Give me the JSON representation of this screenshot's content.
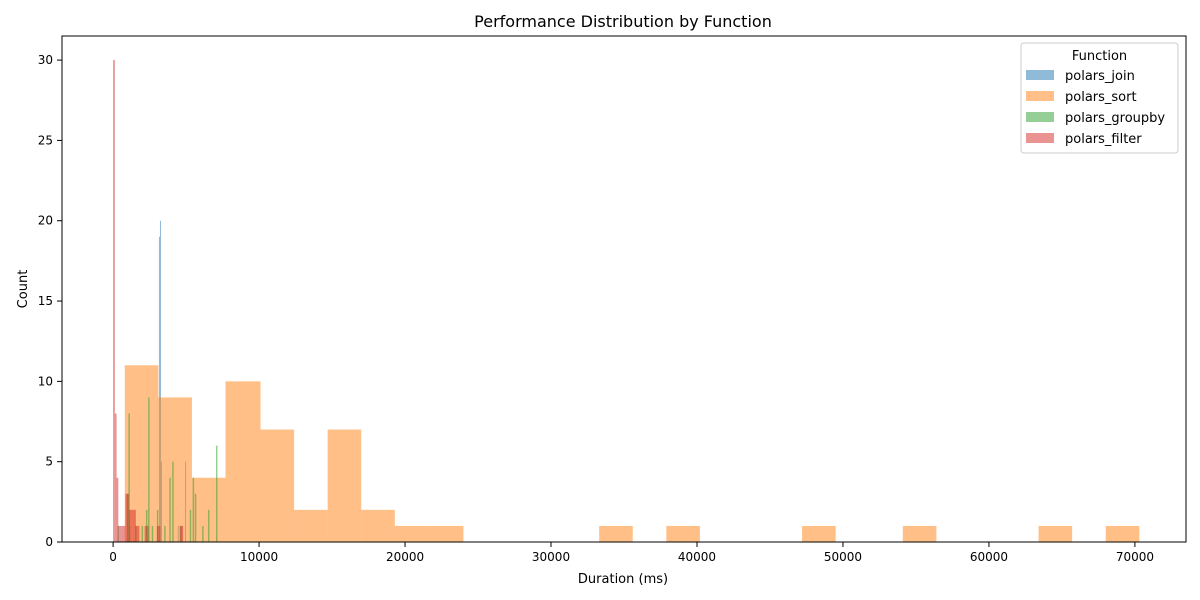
{
  "chart_data": {
    "type": "histogram",
    "title": "Performance Distribution by Function",
    "xlabel": "Duration (ms)",
    "ylabel": "Count",
    "xlim": [
      -3500,
      73500
    ],
    "ylim": [
      0,
      31.5
    ],
    "xticks": [
      0,
      10000,
      20000,
      30000,
      40000,
      50000,
      60000,
      70000
    ],
    "yticks": [
      0,
      5,
      10,
      15,
      20,
      25,
      30
    ],
    "grid": false,
    "legend": {
      "title": "Function",
      "position": "top-right"
    },
    "series": [
      {
        "name": "polars_join",
        "color": "#1f77b4",
        "opacity": 0.5,
        "bins": [
          {
            "x0": 1100,
            "x1": 1170,
            "count": 1
          },
          {
            "x0": 2400,
            "x1": 2470,
            "count": 1
          },
          {
            "x0": 3140,
            "x1": 3210,
            "count": 19
          },
          {
            "x0": 3210,
            "x1": 3280,
            "count": 20
          },
          {
            "x0": 3280,
            "x1": 3350,
            "count": 5
          },
          {
            "x0": 4430,
            "x1": 4500,
            "count": 1
          },
          {
            "x0": 4930,
            "x1": 5000,
            "count": 5
          }
        ]
      },
      {
        "name": "polars_sort",
        "color": "#ff7f0e",
        "opacity": 0.5,
        "bins": [
          {
            "x0": 800,
            "x1": 3100,
            "count": 11
          },
          {
            "x0": 3100,
            "x1": 5400,
            "count": 9
          },
          {
            "x0": 5400,
            "x1": 7700,
            "count": 4
          },
          {
            "x0": 7700,
            "x1": 10100,
            "count": 10
          },
          {
            "x0": 10100,
            "x1": 12400,
            "count": 7
          },
          {
            "x0": 12400,
            "x1": 14700,
            "count": 2
          },
          {
            "x0": 14700,
            "x1": 17000,
            "count": 7
          },
          {
            "x0": 17000,
            "x1": 19300,
            "count": 2
          },
          {
            "x0": 19300,
            "x1": 21700,
            "count": 1
          },
          {
            "x0": 21700,
            "x1": 24000,
            "count": 1
          },
          {
            "x0": 33300,
            "x1": 35600,
            "count": 1
          },
          {
            "x0": 37900,
            "x1": 40200,
            "count": 1
          },
          {
            "x0": 47200,
            "x1": 49500,
            "count": 1
          },
          {
            "x0": 54100,
            "x1": 56400,
            "count": 1
          },
          {
            "x0": 63400,
            "x1": 65700,
            "count": 1
          },
          {
            "x0": 68000,
            "x1": 70300,
            "count": 1
          }
        ]
      },
      {
        "name": "polars_groupby",
        "color": "#2ca02c",
        "opacity": 0.5,
        "bins": [
          {
            "x0": 300,
            "x1": 400,
            "count": 1
          },
          {
            "x0": 950,
            "x1": 1050,
            "count": 3
          },
          {
            "x0": 1050,
            "x1": 1150,
            "count": 8
          },
          {
            "x0": 1500,
            "x1": 1600,
            "count": 1
          },
          {
            "x0": 1950,
            "x1": 2050,
            "count": 1
          },
          {
            "x0": 2250,
            "x1": 2350,
            "count": 2
          },
          {
            "x0": 2400,
            "x1": 2500,
            "count": 9
          },
          {
            "x0": 2650,
            "x1": 2750,
            "count": 1
          },
          {
            "x0": 3000,
            "x1": 3100,
            "count": 2
          },
          {
            "x0": 3500,
            "x1": 3600,
            "count": 1
          },
          {
            "x0": 3850,
            "x1": 3950,
            "count": 4
          },
          {
            "x0": 4050,
            "x1": 4150,
            "count": 5
          },
          {
            "x0": 4600,
            "x1": 4700,
            "count": 1
          },
          {
            "x0": 5250,
            "x1": 5350,
            "count": 2
          },
          {
            "x0": 5450,
            "x1": 5550,
            "count": 4
          },
          {
            "x0": 5600,
            "x1": 5700,
            "count": 3
          },
          {
            "x0": 6100,
            "x1": 6200,
            "count": 1
          },
          {
            "x0": 6500,
            "x1": 6600,
            "count": 2
          },
          {
            "x0": 7050,
            "x1": 7150,
            "count": 6
          }
        ]
      },
      {
        "name": "polars_filter",
        "color": "#d62728",
        "opacity": 0.5,
        "bins": [
          {
            "x0": 0,
            "x1": 120,
            "count": 30
          },
          {
            "x0": 120,
            "x1": 240,
            "count": 8
          },
          {
            "x0": 240,
            "x1": 360,
            "count": 4
          },
          {
            "x0": 360,
            "x1": 600,
            "count": 1
          },
          {
            "x0": 600,
            "x1": 840,
            "count": 1
          },
          {
            "x0": 840,
            "x1": 1080,
            "count": 3
          },
          {
            "x0": 1080,
            "x1": 1320,
            "count": 2
          },
          {
            "x0": 1320,
            "x1": 1560,
            "count": 2
          },
          {
            "x0": 1560,
            "x1": 1800,
            "count": 1
          },
          {
            "x0": 2160,
            "x1": 2400,
            "count": 1
          },
          {
            "x0": 3000,
            "x1": 3240,
            "count": 1
          },
          {
            "x0": 4560,
            "x1": 4800,
            "count": 1
          }
        ]
      }
    ]
  }
}
